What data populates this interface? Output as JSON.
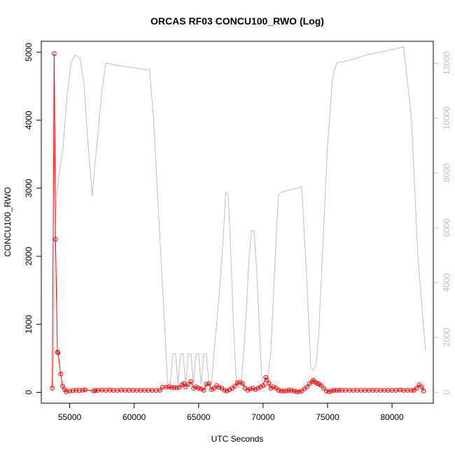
{
  "chart_data": {
    "type": "line",
    "title": "ORCAS RF03 CONCU100_RWO (Log)",
    "xlabel": "UTC Seconds",
    "ylabel": "CONCU100_RWO",
    "ylabel_right": "",
    "xlim": [
      52800,
      83200
    ],
    "ylim": [
      -160,
      5160
    ],
    "ylim_right": [
      -400,
      12800
    ],
    "x_ticks": [
      55000,
      60000,
      65000,
      70000,
      75000,
      80000
    ],
    "y_ticks": [
      0,
      1000,
      2000,
      3000,
      4000,
      5000
    ],
    "y_ticks_right": [
      0,
      2000,
      4000,
      6000,
      8000,
      10000,
      12000
    ],
    "grid": false,
    "legend": "none",
    "colors": {
      "primary": "#ff0000",
      "secondary": "#bebebe",
      "axis": "#000000"
    },
    "series": [
      {
        "axis": "left",
        "style": "line+points",
        "color": "#ff0000",
        "x": [
          53650,
          53800,
          53900,
          54050,
          54100,
          54300,
          54450,
          54600,
          54750,
          55000,
          55250,
          55500,
          55750,
          56000,
          56200,
          56850,
          57000,
          57200,
          57500,
          57800,
          58100,
          58400,
          58700,
          59000,
          59300,
          59600,
          59900,
          60200,
          60500,
          60800,
          61100,
          61400,
          61700,
          62000,
          62200,
          62500,
          62700,
          62900,
          63100,
          63300,
          63500,
          63700,
          63850,
          64000,
          64200,
          64400,
          64600,
          64800,
          65000,
          65200,
          65400,
          65600,
          65800,
          66000,
          66200,
          66400,
          66600,
          66800,
          67000,
          67200,
          67400,
          67600,
          67800,
          68000,
          68200,
          68400,
          68600,
          68800,
          69000,
          69200,
          69400,
          69600,
          69800,
          70000,
          70200,
          70300,
          70450,
          70600,
          70800,
          71000,
          71200,
          71400,
          71600,
          71800,
          72000,
          72200,
          72400,
          72600,
          72800,
          73000,
          73200,
          73400,
          73600,
          73800,
          73900,
          74050,
          74200,
          74350,
          74500,
          74700,
          74900,
          75100,
          75300,
          75500,
          75700,
          75900,
          76100,
          76400,
          76700,
          77000,
          77300,
          77600,
          77900,
          78200,
          78500,
          78800,
          79100,
          79400,
          79700,
          80000,
          80300,
          80600,
          80900,
          81200,
          81500,
          81700,
          81900,
          82100,
          82300,
          82450
        ],
        "y": [
          60,
          4980,
          2250,
          590,
          580,
          270,
          90,
          40,
          10,
          20,
          25,
          30,
          28,
          30,
          35,
          20,
          28,
          30,
          32,
          30,
          32,
          30,
          30,
          32,
          30,
          30,
          30,
          30,
          30,
          30,
          30,
          30,
          28,
          30,
          75,
          75,
          80,
          70,
          70,
          65,
          75,
          110,
          130,
          80,
          120,
          160,
          60,
          80,
          60,
          50,
          30,
          120,
          130,
          40,
          60,
          100,
          70,
          60,
          30,
          20,
          40,
          60,
          90,
          140,
          150,
          130,
          60,
          30,
          50,
          60,
          40,
          60,
          80,
          100,
          220,
          180,
          130,
          60,
          80,
          60,
          30,
          20,
          20,
          20,
          30,
          30,
          20,
          10,
          10,
          20,
          50,
          80,
          130,
          160,
          180,
          150,
          130,
          120,
          100,
          60,
          20,
          10,
          20,
          30,
          30,
          30,
          30,
          30,
          30,
          30,
          30,
          30,
          30,
          30,
          30,
          30,
          30,
          30,
          30,
          30,
          30,
          35,
          30,
          30,
          30,
          30,
          60,
          110,
          80,
          20
        ]
      },
      {
        "axis": "right",
        "style": "line",
        "color": "#bebebe",
        "x": [
          53600,
          53750,
          53850,
          54000,
          54200,
          54500,
          54800,
          55100,
          55400,
          55800,
          56100,
          56400,
          56750,
          56900,
          57200,
          57500,
          57800,
          58400,
          59000,
          59800,
          60500,
          61200,
          61500,
          61900,
          62300,
          62600,
          62800,
          63000,
          63200,
          63400,
          63600,
          63800,
          64000,
          64200,
          64400,
          64600,
          64800,
          65000,
          65200,
          65400,
          65600,
          65800,
          66000,
          66200,
          66500,
          66900,
          67100,
          67300,
          67500,
          67700,
          67900,
          68100,
          68300,
          68500,
          68700,
          68900,
          69100,
          69300,
          69500,
          69700,
          69900,
          70100,
          70300,
          70600,
          70800,
          71000,
          71200,
          71400,
          71800,
          72300,
          72800,
          73000,
          73400,
          73700,
          73900,
          74100,
          74300,
          74600,
          75000,
          75400,
          75700,
          75900,
          76200,
          77000,
          78000,
          79000,
          80000,
          80900,
          81500,
          82000,
          82600
        ],
        "y": [
          200,
          1000,
          5500,
          7200,
          8000,
          9000,
          10800,
          12000,
          12300,
          12200,
          11300,
          9200,
          7150,
          8000,
          9500,
          11000,
          12000,
          11950,
          11900,
          11850,
          11800,
          11750,
          10000,
          6500,
          3000,
          300,
          300,
          1400,
          1400,
          300,
          1400,
          1400,
          300,
          1400,
          1400,
          300,
          1400,
          1400,
          300,
          1400,
          1400,
          300,
          300,
          1500,
          3000,
          5500,
          7300,
          7200,
          5000,
          2500,
          500,
          150,
          300,
          1500,
          3000,
          4800,
          5900,
          5900,
          4500,
          2500,
          500,
          150,
          300,
          1500,
          3500,
          5500,
          7200,
          7300,
          7350,
          7400,
          7450,
          7500,
          4000,
          900,
          800,
          1000,
          2000,
          5000,
          9000,
          11500,
          12000,
          12050,
          12050,
          12150,
          12300,
          12400,
          12500,
          12600,
          10000,
          5000,
          1500
        ]
      }
    ]
  }
}
